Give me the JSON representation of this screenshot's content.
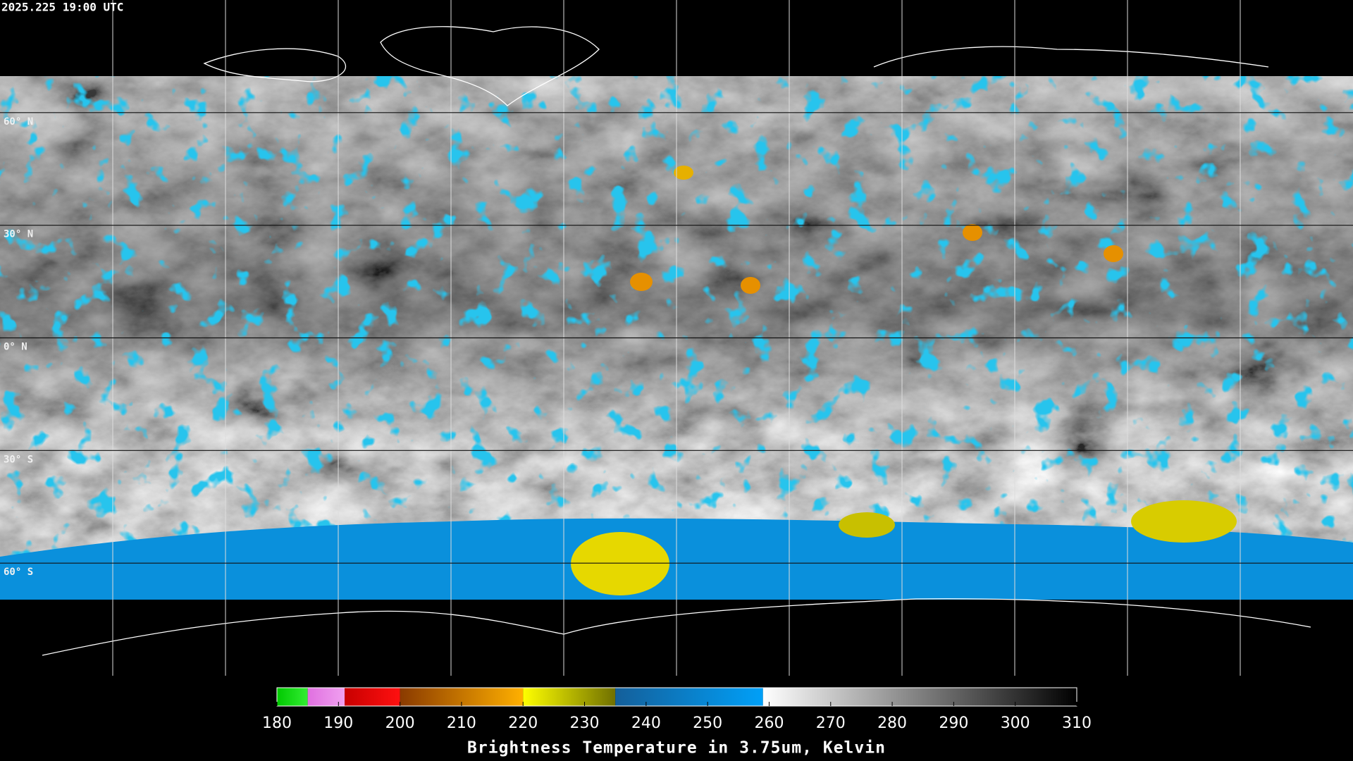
{
  "map": {
    "timestamp": "2025.225 19:00 UTC",
    "latitude_labels": [
      "60° N",
      "30° N",
      "0° N",
      "30° S",
      "60° S"
    ]
  },
  "colorbar": {
    "title": "Brightness Temperature in 3.75um, Kelvin",
    "range": [
      180,
      310
    ],
    "ticks": [
      180,
      190,
      200,
      210,
      220,
      230,
      240,
      250,
      260,
      270,
      280,
      290,
      300,
      310
    ],
    "segments": [
      {
        "from": 180,
        "to": 185,
        "colors": [
          "#00c800",
          "#33ee33"
        ]
      },
      {
        "from": 185,
        "to": 191,
        "colors": [
          "#e070e0",
          "#f0a0f0"
        ]
      },
      {
        "from": 191,
        "to": 200,
        "colors": [
          "#c80000",
          "#ff1010"
        ]
      },
      {
        "from": 200,
        "to": 220,
        "colors": [
          "#8a3a00",
          "#ffb000"
        ]
      },
      {
        "from": 220,
        "to": 235,
        "colors": [
          "#ffff00",
          "#707000"
        ]
      },
      {
        "from": 235,
        "to": 259,
        "colors": [
          "#145f9a",
          "#00a0f8"
        ]
      },
      {
        "from": 259,
        "to": 310,
        "colors": [
          "#ffffff",
          "#000000"
        ]
      }
    ]
  }
}
